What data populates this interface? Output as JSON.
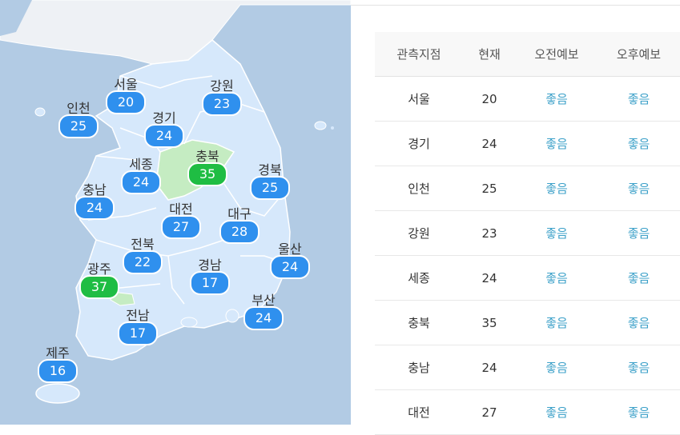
{
  "map": {
    "regions": [
      {
        "name": "서울",
        "value": "20",
        "status": "good"
      },
      {
        "name": "강원",
        "value": "23",
        "status": "good"
      },
      {
        "name": "인천",
        "value": "25",
        "status": "good"
      },
      {
        "name": "경기",
        "value": "24",
        "status": "good"
      },
      {
        "name": "충북",
        "value": "35",
        "status": "normal"
      },
      {
        "name": "세종",
        "value": "24",
        "status": "good"
      },
      {
        "name": "경북",
        "value": "25",
        "status": "good"
      },
      {
        "name": "충남",
        "value": "24",
        "status": "good"
      },
      {
        "name": "대전",
        "value": "27",
        "status": "good"
      },
      {
        "name": "대구",
        "value": "28",
        "status": "good"
      },
      {
        "name": "전북",
        "value": "22",
        "status": "good"
      },
      {
        "name": "울산",
        "value": "24",
        "status": "good"
      },
      {
        "name": "광주",
        "value": "37",
        "status": "normal"
      },
      {
        "name": "경남",
        "value": "17",
        "status": "good"
      },
      {
        "name": "부산",
        "value": "24",
        "status": "good"
      },
      {
        "name": "전남",
        "value": "17",
        "status": "good"
      },
      {
        "name": "제주",
        "value": "16",
        "status": "good"
      }
    ],
    "colors": {
      "good": "#2f90ee",
      "normal": "#1fbd43",
      "sea": "#b2cbe4",
      "land": "#d6e8fb",
      "normal_land": "#c5ecc2"
    }
  },
  "table": {
    "headers": [
      "관측지점",
      "현재",
      "오전예보",
      "오후예보"
    ],
    "rows": [
      {
        "station": "서울",
        "current": "20",
        "am": "좋음",
        "pm": "좋음"
      },
      {
        "station": "경기",
        "current": "24",
        "am": "좋음",
        "pm": "좋음"
      },
      {
        "station": "인천",
        "current": "25",
        "am": "좋음",
        "pm": "좋음"
      },
      {
        "station": "강원",
        "current": "23",
        "am": "좋음",
        "pm": "좋음"
      },
      {
        "station": "세종",
        "current": "24",
        "am": "좋음",
        "pm": "좋음"
      },
      {
        "station": "충북",
        "current": "35",
        "am": "좋음",
        "pm": "좋음"
      },
      {
        "station": "충남",
        "current": "24",
        "am": "좋음",
        "pm": "좋음"
      },
      {
        "station": "대전",
        "current": "27",
        "am": "좋음",
        "pm": "좋음"
      }
    ]
  }
}
